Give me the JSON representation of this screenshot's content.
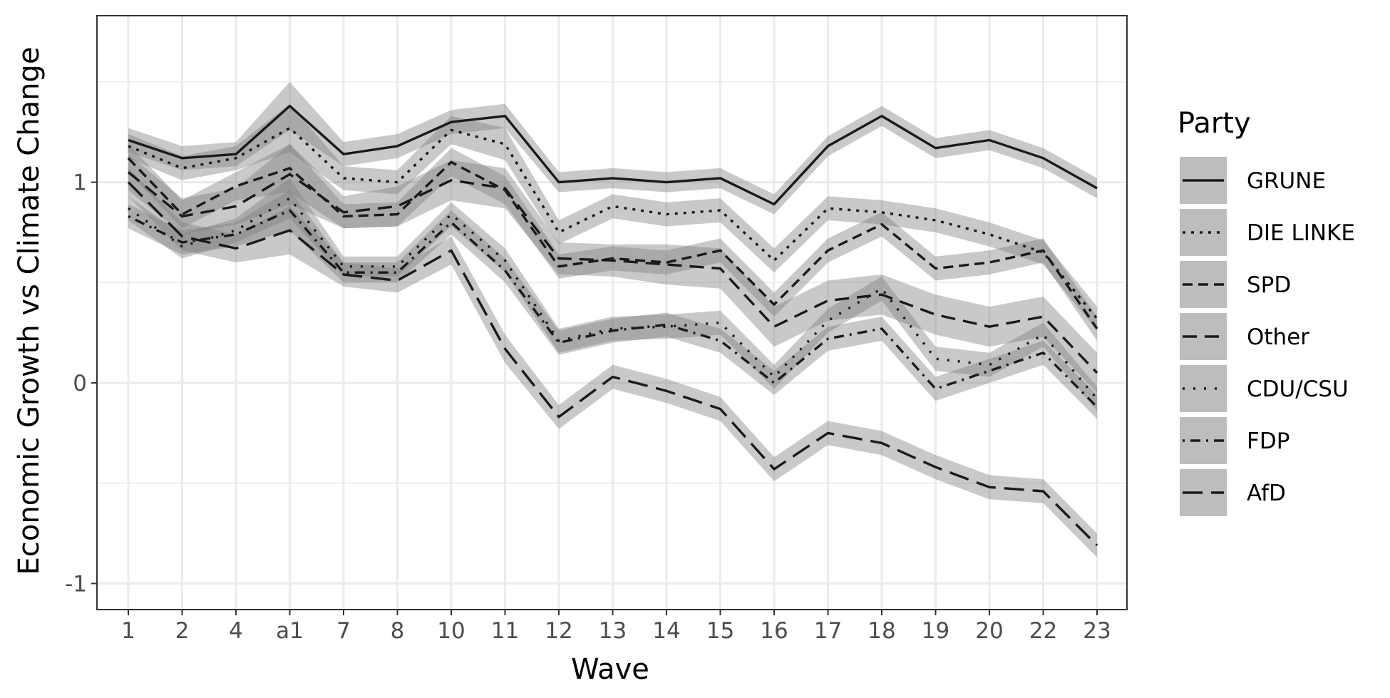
{
  "chart_data": {
    "type": "line",
    "title": "",
    "xlabel": "Wave",
    "ylabel": "Economic Growth vs Climate Change",
    "categories": [
      "1",
      "2",
      "4",
      "a1",
      "7",
      "8",
      "10",
      "11",
      "12",
      "13",
      "14",
      "15",
      "16",
      "17",
      "18",
      "19",
      "20",
      "22",
      "23"
    ],
    "ylim": [
      -1.13,
      1.83
    ],
    "yticks": [
      -1,
      0,
      1
    ],
    "ytick_labels": [
      "-1",
      "0",
      "1"
    ],
    "grid": true,
    "legend": {
      "title": "Party",
      "position": "right"
    },
    "series": [
      {
        "name": "GRUNE",
        "dash": "solid",
        "values": [
          1.21,
          1.12,
          1.14,
          1.38,
          1.14,
          1.18,
          1.3,
          1.33,
          1.0,
          1.02,
          1.0,
          1.02,
          0.89,
          1.18,
          1.33,
          1.17,
          1.21,
          1.12,
          0.97
        ],
        "ci_half": [
          0.06,
          0.06,
          0.06,
          0.12,
          0.06,
          0.06,
          0.06,
          0.06,
          0.05,
          0.05,
          0.05,
          0.05,
          0.05,
          0.05,
          0.05,
          0.05,
          0.05,
          0.05,
          0.05
        ]
      },
      {
        "name": "DIE LINKE",
        "dash": "dotted",
        "values": [
          1.18,
          1.07,
          1.12,
          1.27,
          1.02,
          1.0,
          1.26,
          1.19,
          0.75,
          0.88,
          0.84,
          0.86,
          0.61,
          0.87,
          0.85,
          0.81,
          0.74,
          0.65,
          0.32
        ],
        "ci_half": [
          0.06,
          0.06,
          0.06,
          0.12,
          0.06,
          0.06,
          0.07,
          0.08,
          0.06,
          0.06,
          0.06,
          0.06,
          0.06,
          0.06,
          0.06,
          0.06,
          0.06,
          0.06,
          0.06
        ]
      },
      {
        "name": "SPD",
        "dash": "short-dash",
        "values": [
          1.12,
          0.84,
          0.98,
          1.07,
          0.83,
          0.84,
          1.1,
          0.96,
          0.58,
          0.62,
          0.6,
          0.66,
          0.39,
          0.66,
          0.79,
          0.57,
          0.6,
          0.66,
          0.27
        ],
        "ci_half": [
          0.07,
          0.07,
          0.07,
          0.12,
          0.06,
          0.06,
          0.07,
          0.07,
          0.06,
          0.06,
          0.06,
          0.06,
          0.06,
          0.06,
          0.06,
          0.06,
          0.06,
          0.06,
          0.06
        ]
      },
      {
        "name": "Other",
        "dash": "dashed",
        "values": [
          1.05,
          0.83,
          0.88,
          1.04,
          0.85,
          0.88,
          1.01,
          0.97,
          0.62,
          0.61,
          0.59,
          0.57,
          0.28,
          0.41,
          0.44,
          0.34,
          0.28,
          0.33,
          0.05
        ],
        "ci_half": [
          0.09,
          0.09,
          0.09,
          0.15,
          0.08,
          0.1,
          0.1,
          0.1,
          0.08,
          0.08,
          0.1,
          0.1,
          0.1,
          0.1,
          0.1,
          0.1,
          0.1,
          0.1,
          0.1
        ]
      },
      {
        "name": "CDU/CSU",
        "dash": "dot-sparse",
        "values": [
          0.87,
          0.68,
          0.76,
          0.92,
          0.58,
          0.58,
          0.84,
          0.61,
          0.21,
          0.27,
          0.28,
          0.3,
          0.03,
          0.31,
          0.47,
          0.12,
          0.09,
          0.24,
          -0.08
        ],
        "ci_half": [
          0.06,
          0.06,
          0.06,
          0.1,
          0.05,
          0.05,
          0.06,
          0.06,
          0.06,
          0.06,
          0.06,
          0.06,
          0.06,
          0.06,
          0.06,
          0.06,
          0.06,
          0.06,
          0.06
        ]
      },
      {
        "name": "FDP",
        "dash": "dash-dot",
        "values": [
          0.83,
          0.7,
          0.74,
          0.86,
          0.55,
          0.55,
          0.8,
          0.56,
          0.2,
          0.26,
          0.29,
          0.21,
          0.0,
          0.22,
          0.27,
          -0.03,
          0.06,
          0.15,
          -0.12
        ],
        "ci_half": [
          0.06,
          0.06,
          0.06,
          0.1,
          0.05,
          0.05,
          0.06,
          0.06,
          0.06,
          0.06,
          0.06,
          0.06,
          0.06,
          0.06,
          0.06,
          0.06,
          0.06,
          0.06,
          0.06
        ]
      },
      {
        "name": "AfD",
        "dash": "long-dash",
        "values": [
          1.0,
          0.73,
          0.67,
          0.76,
          0.54,
          0.51,
          0.66,
          0.17,
          -0.17,
          0.03,
          -0.04,
          -0.13,
          -0.43,
          -0.25,
          -0.3,
          -0.42,
          -0.52,
          -0.54,
          -0.81
        ],
        "ci_half": [
          0.07,
          0.07,
          0.07,
          0.12,
          0.06,
          0.06,
          0.07,
          0.07,
          0.06,
          0.06,
          0.06,
          0.06,
          0.06,
          0.06,
          0.06,
          0.06,
          0.06,
          0.06,
          0.06
        ]
      }
    ]
  }
}
